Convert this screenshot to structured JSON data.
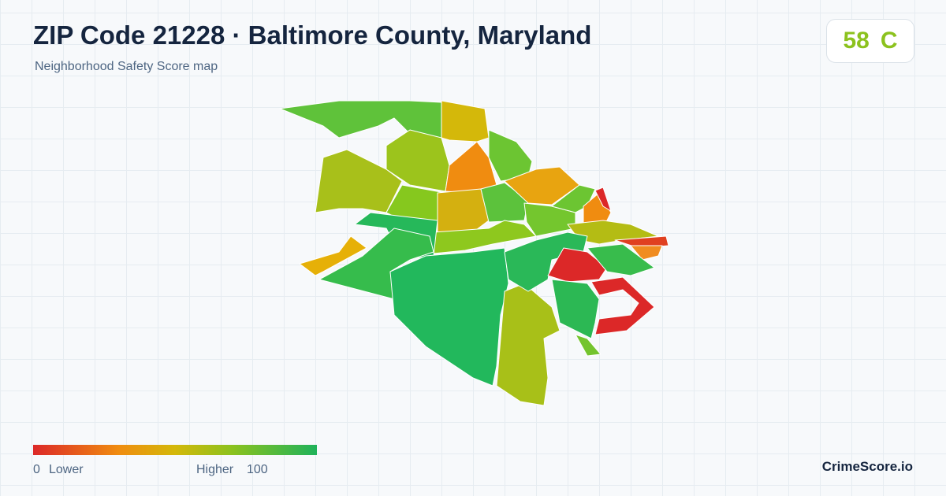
{
  "header": {
    "title": "ZIP Code 21228 · Baltimore County, Maryland",
    "subtitle": "Neighborhood Safety Score map"
  },
  "score": {
    "value": 58,
    "grade": "C"
  },
  "legend": {
    "min": 0,
    "min_label": "Lower",
    "max_label": "Higher",
    "max": 100
  },
  "brand": "CrimeScore.io"
}
